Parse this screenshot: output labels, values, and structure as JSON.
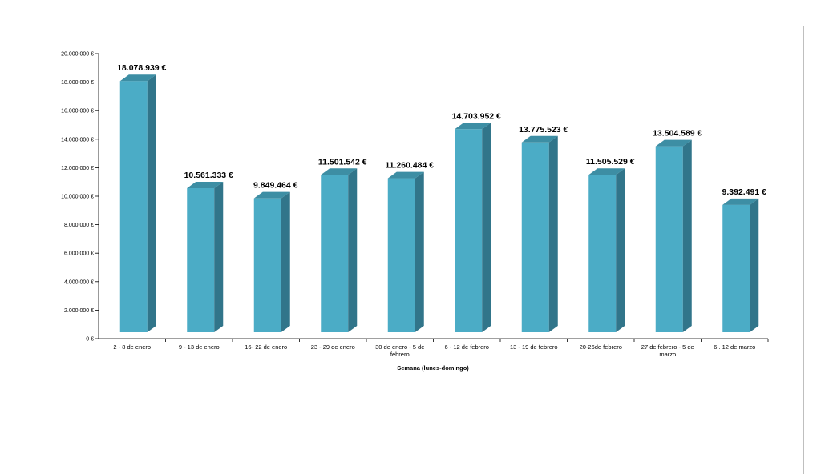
{
  "chart_data": {
    "type": "bar",
    "title": "",
    "xlabel": "Semana (lunes-domingo)",
    "ylabel": "",
    "ylim": [
      0,
      20000000
    ],
    "y_ticks": [
      "0 €",
      "2.000.000 €",
      "4.000.000 €",
      "6.000.000 €",
      "8.000.000 €",
      "10.000.000 €",
      "12.000.000 €",
      "14.000.000 €",
      "16.000.000 €",
      "18.000.000 €",
      "20.000.000 €"
    ],
    "categories": [
      "2 - 8 de enero",
      "9 - 13 de enero",
      "16- 22 de enero",
      "23 - 29 de enero",
      "30 de enero - 5 de febrero",
      "6 - 12 de febrero",
      "13 - 19 de febrero",
      "20-26de febrero",
      "27 de febrero - 5 de marzo",
      "6 . 12 de marzo"
    ],
    "values": [
      18078939,
      10561333,
      9849464,
      11501542,
      11260484,
      14703952,
      13775523,
      11505529,
      13504589,
      9392491
    ],
    "data_labels": [
      "18.078.939 €",
      "10.561.333 €",
      "9.849.464 €",
      "11.501.542 €",
      "11.260.484 €",
      "14.703.952 €",
      "13.775.523 €",
      "11.505.529 €",
      "13.504.589 €",
      "9.392.491 €"
    ],
    "grid": false,
    "legend": "none",
    "colors": {
      "bar_front": "#4bacc6",
      "bar_side": "#31758a",
      "bar_top": "#3d8ea4"
    }
  }
}
